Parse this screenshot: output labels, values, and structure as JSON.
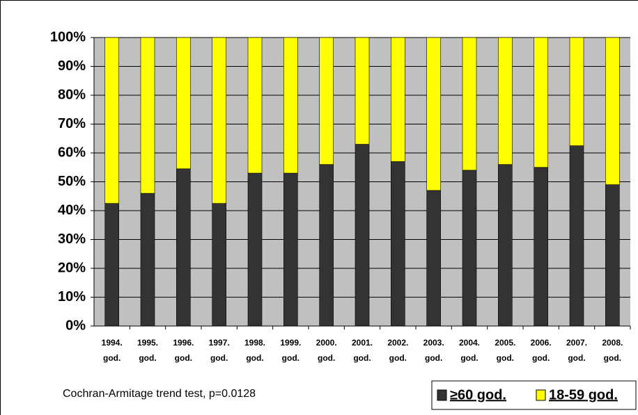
{
  "chart_data": {
    "type": "stacked_bar",
    "categories": [
      "1994. god.",
      "1995. god.",
      "1996. god.",
      "1997. god.",
      "1998. god.",
      "1999. god.",
      "2000. god.",
      "2001. god.",
      "2002. god.",
      "2003. god.",
      "2004. god.",
      "2005. god.",
      "2006. god.",
      "2007. god.",
      "2008. god."
    ],
    "series": [
      {
        "name": "≥60 god.",
        "color": "#333333",
        "values": [
          42.5,
          46,
          54.5,
          42.5,
          53,
          53,
          56,
          63,
          57,
          47,
          54,
          56,
          55,
          62.5,
          49
        ]
      },
      {
        "name": "18-59 god.",
        "color": "#ffff00",
        "values": [
          57.5,
          54,
          45.5,
          57.5,
          47,
          47,
          44,
          37,
          43,
          53,
          46,
          44,
          45,
          37.5,
          51
        ]
      }
    ],
    "ylim": [
      0,
      100
    ],
    "yticks": [
      {
        "value": 0,
        "label": "0%"
      },
      {
        "value": 10,
        "label": "10%"
      },
      {
        "value": 20,
        "label": "20%"
      },
      {
        "value": 30,
        "label": "30%"
      },
      {
        "value": 40,
        "label": "40%"
      },
      {
        "value": 50,
        "label": "50%"
      },
      {
        "value": 60,
        "label": "60%"
      },
      {
        "value": 70,
        "label": "70%"
      },
      {
        "value": 80,
        "label": "80%"
      },
      {
        "value": 90,
        "label": "90%"
      },
      {
        "value": 100,
        "label": "100%"
      }
    ],
    "grid": true,
    "annotation": "Cochran-Armitage trend test, p=0.0128"
  }
}
